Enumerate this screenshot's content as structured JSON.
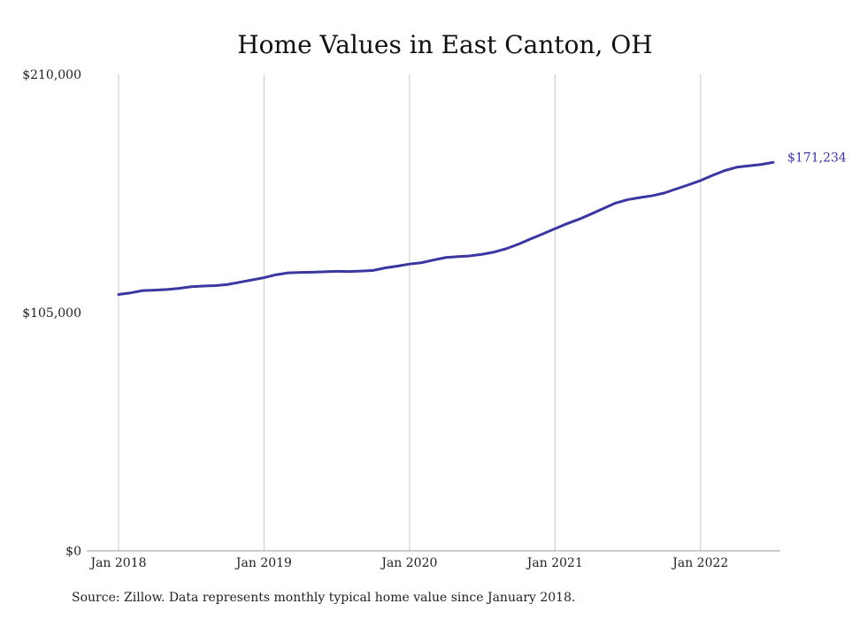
{
  "chart_data": {
    "type": "line",
    "title": "Home Values in East Canton, OH",
    "xlabel": "",
    "ylabel": "",
    "x_ticks": [
      "Jan 2018",
      "Jan 2019",
      "Jan 2020",
      "Jan 2021",
      "Jan 2022"
    ],
    "y_ticks": [
      "$0",
      "$105,000",
      "$210,000"
    ],
    "y_tick_values": [
      0,
      105000,
      210000
    ],
    "ylim": [
      0,
      210000
    ],
    "xlim": [
      "2018-01",
      "2022-07"
    ],
    "grid": "vertical",
    "legend": "none",
    "series": [
      {
        "color": "#3c36a0",
        "end_label": "$171,234",
        "x": [
          "2018-01",
          "2018-02",
          "2018-03",
          "2018-04",
          "2018-05",
          "2018-06",
          "2018-07",
          "2018-08",
          "2018-09",
          "2018-10",
          "2018-11",
          "2018-12",
          "2019-01",
          "2019-02",
          "2019-03",
          "2019-04",
          "2019-05",
          "2019-06",
          "2019-07",
          "2019-08",
          "2019-09",
          "2019-10",
          "2019-11",
          "2019-12",
          "2020-01",
          "2020-02",
          "2020-03",
          "2020-04",
          "2020-05",
          "2020-06",
          "2020-07",
          "2020-08",
          "2020-09",
          "2020-10",
          "2020-11",
          "2020-12",
          "2021-01",
          "2021-02",
          "2021-03",
          "2021-04",
          "2021-05",
          "2021-06",
          "2021-07",
          "2021-08",
          "2021-09",
          "2021-10",
          "2021-11",
          "2021-12",
          "2022-01",
          "2022-02",
          "2022-03",
          "2022-04",
          "2022-05",
          "2022-06",
          "2022-07"
        ],
        "values": [
          113000,
          113700,
          114700,
          114900,
          115200,
          115700,
          116400,
          116700,
          116900,
          117400,
          118400,
          119400,
          120400,
          121700,
          122500,
          122700,
          122800,
          123000,
          123200,
          123100,
          123300,
          123600,
          124700,
          125500,
          126400,
          127000,
          128200,
          129300,
          129700,
          130000,
          130700,
          131700,
          133200,
          135200,
          137500,
          139700,
          142000,
          144200,
          146200,
          148500,
          150900,
          153300,
          154800,
          155700,
          156500,
          157700,
          159500,
          161300,
          163200,
          165500,
          167600,
          169100,
          169700,
          170300,
          171234
        ]
      }
    ]
  },
  "colors": {
    "line": "#3c36a0",
    "gridline": "#c8c8c8",
    "axis": "#999999",
    "text": "#222222"
  },
  "source_note": "Source: Zillow. Data represents monthly typical home value since January 2018."
}
